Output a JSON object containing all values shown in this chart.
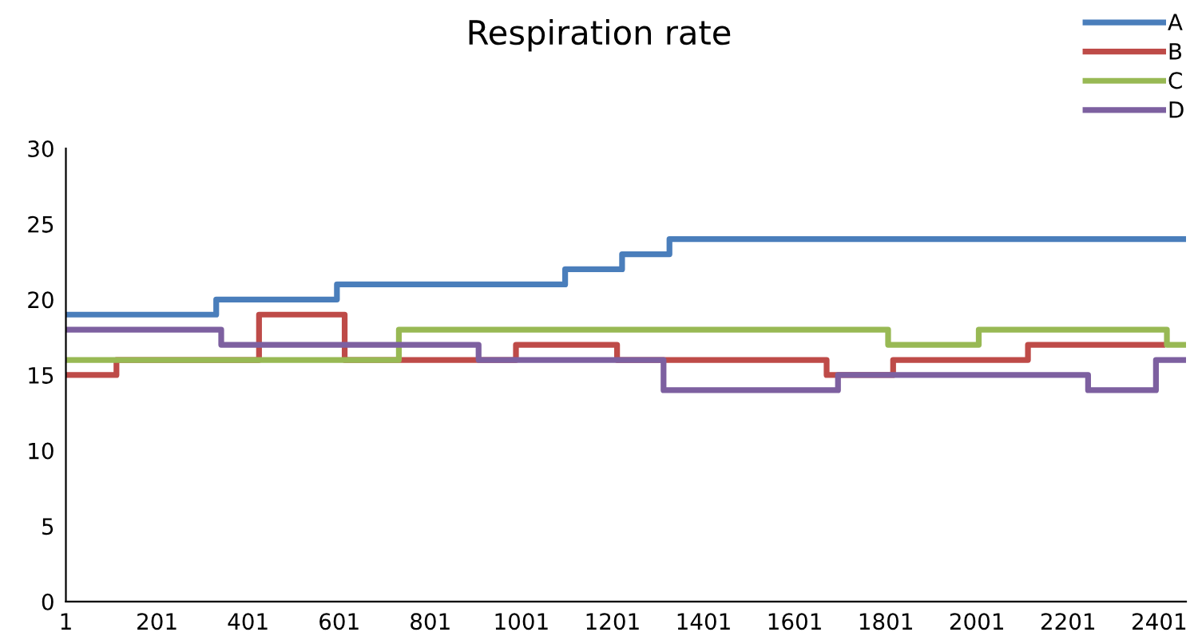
{
  "chart_data": {
    "type": "step",
    "title": "Respiration rate",
    "series": [
      {
        "name": "A",
        "color": "#4a7ebb",
        "x": [
          1,
          331,
          596,
          1097,
          1222,
          1326,
          2460
        ],
        "values": [
          19,
          20,
          21,
          22,
          23,
          24,
          24
        ]
      },
      {
        "name": "B",
        "color": "#be4b48",
        "x": [
          1,
          112,
          425,
          613,
          989,
          1211,
          1671,
          1817,
          2113,
          2408
        ],
        "values": [
          15,
          16,
          19,
          16,
          17,
          16,
          15,
          16,
          17,
          17
        ]
      },
      {
        "name": "C",
        "color": "#98b954",
        "x": [
          1,
          732,
          1806,
          2005,
          2418,
          2460
        ],
        "values": [
          16,
          18,
          17,
          18,
          17,
          17
        ]
      },
      {
        "name": "D",
        "color": "#7d60a0",
        "x": [
          1,
          342,
          907,
          1313,
          1696,
          2245,
          2394,
          2460
        ],
        "values": [
          18,
          17,
          16,
          14,
          15,
          14,
          16,
          16
        ]
      }
    ],
    "xlim": [
      1,
      2460
    ],
    "xticks": [
      1,
      201,
      401,
      601,
      801,
      1001,
      1201,
      1401,
      1601,
      1801,
      2001,
      2201,
      2401
    ],
    "ylim": [
      0,
      30
    ],
    "yticks": [
      0,
      5,
      10,
      15,
      20,
      25,
      30
    ],
    "legend": "top right",
    "grid": false,
    "marker": "none",
    "line_style": "solid"
  }
}
